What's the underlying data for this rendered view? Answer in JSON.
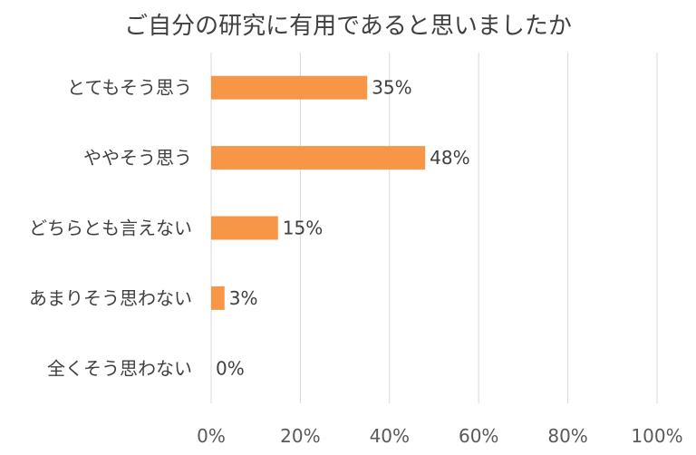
{
  "chart_data": {
    "type": "bar",
    "orientation": "horizontal",
    "title": "ご自分の研究に有用であると思いましたか",
    "categories": [
      "とてもそう思う",
      "ややそう思う",
      "どちらとも言えない",
      "あまりそう思わない",
      "全くそう思わない"
    ],
    "values": [
      35,
      48,
      15,
      3,
      0
    ],
    "data_labels": [
      "35%",
      "48%",
      "15%",
      "3%",
      "0%"
    ],
    "xlim": [
      0,
      100
    ],
    "x_ticks": [
      "0%",
      "20%",
      "40%",
      "60%",
      "80%",
      "100%"
    ],
    "grid": true,
    "bar_color": "#F79646",
    "grid_color": "#D9D9D9",
    "legend": "none"
  }
}
